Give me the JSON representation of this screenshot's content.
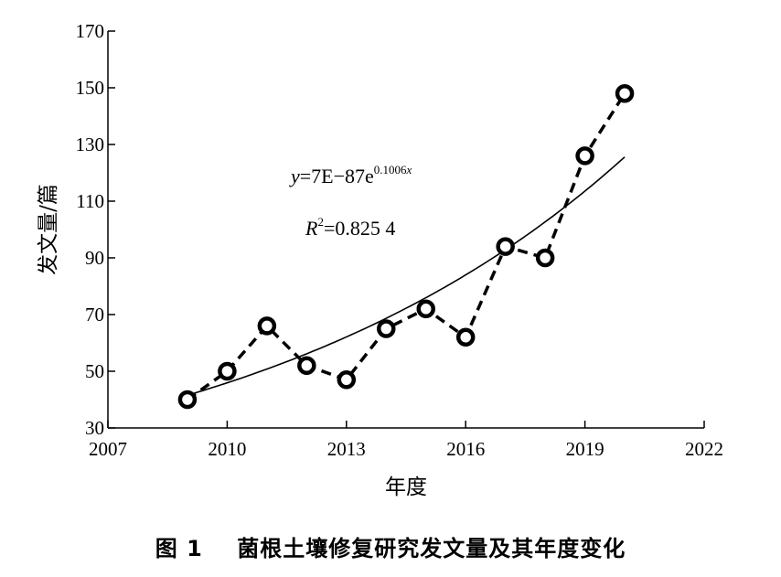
{
  "chart_data": {
    "type": "scatter",
    "xlabel": "年度",
    "ylabel": "发文量/篇",
    "xlim": [
      2007,
      2022
    ],
    "ylim": [
      30,
      170
    ],
    "xticks": [
      2007,
      2010,
      2013,
      2016,
      2019,
      2022
    ],
    "yticks": [
      30,
      50,
      70,
      90,
      110,
      130,
      150,
      170
    ],
    "grid": false,
    "series": [
      {
        "style": "dashed-line-with-circle-markers",
        "x": [
          2009,
          2010,
          2011,
          2012,
          2013,
          2014,
          2015,
          2016,
          2017,
          2018,
          2019,
          2020
        ],
        "y": [
          40,
          50,
          66,
          52,
          47,
          65,
          72,
          62,
          94,
          90,
          126,
          148
        ]
      },
      {
        "style": "solid-exponential-trendline",
        "fit": {
          "a": 7e-87,
          "b": 0.1006
        }
      }
    ],
    "annotations": {
      "equation_prefix": "y",
      "equation_body": "=7E−87e",
      "equation_exponent": "0.1006",
      "equation_exponent_var": "x",
      "r2_prefix": "R",
      "r2_sup": "2",
      "r2_value": "=0.825 4"
    }
  },
  "caption": {
    "label": "图 1",
    "text": "菌根土壤修复研究发文量及其年度变化"
  }
}
